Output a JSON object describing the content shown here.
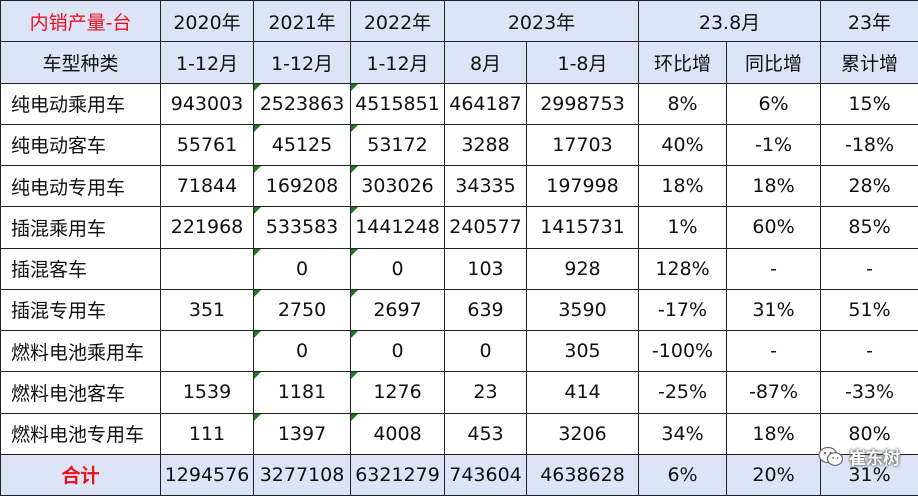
{
  "header": {
    "title": "内销产量-台",
    "years": [
      "2020年",
      "2021年",
      "2022年",
      "2023年",
      "23.8月",
      "23年"
    ],
    "sub": [
      "车型种类",
      "1-12月",
      "1-12月",
      "1-12月",
      "8月",
      "1-8月",
      "环比增",
      "同比增",
      "累计增"
    ]
  },
  "rows": [
    {
      "cells": [
        "纯电动乘用车",
        "943003",
        "2523863",
        "4515851",
        "464187",
        "2998753",
        "8%",
        "6%",
        "15%"
      ]
    },
    {
      "cells": [
        "纯电动客车",
        "55761",
        "45125",
        "53172",
        "3288",
        "17703",
        "40%",
        "-1%",
        "-18%"
      ]
    },
    {
      "cells": [
        "纯电动专用车",
        "71844",
        "169208",
        "303026",
        "34335",
        "197998",
        "18%",
        "18%",
        "28%"
      ]
    },
    {
      "cells": [
        "插混乘用车",
        "221968",
        "533583",
        "1441248",
        "240577",
        "1415731",
        "1%",
        "60%",
        "85%"
      ]
    },
    {
      "cells": [
        "插混客车",
        "",
        "0",
        "0",
        "103",
        "928",
        "128%",
        "-",
        "-"
      ]
    },
    {
      "cells": [
        "插混专用车",
        "351",
        "2750",
        "2697",
        "639",
        "3590",
        "-17%",
        "31%",
        "51%"
      ]
    },
    {
      "cells": [
        "燃料电池乘用车",
        "",
        "0",
        "0",
        "0",
        "305",
        "-100%",
        "-",
        "-"
      ]
    },
    {
      "cells": [
        "燃料电池客车",
        "1539",
        "1181",
        "1276",
        "23",
        "414",
        "-25%",
        "-87%",
        "-33%"
      ]
    },
    {
      "cells": [
        "燃料电池专用车",
        "111",
        "1397",
        "4008",
        "453",
        "3206",
        "34%",
        "18%",
        "80%"
      ]
    }
  ],
  "total": {
    "cells": [
      "合计",
      "1294576",
      "3277108",
      "6321279",
      "743604",
      "4638628",
      "6%",
      "20%",
      "31%"
    ]
  },
  "watermark": {
    "text": "崔东树",
    "icon": "wechat-icon"
  },
  "colors": {
    "header_bg": "#dde4f7",
    "title_red": "#e8101c",
    "corner_green": "#1f7a1f"
  }
}
